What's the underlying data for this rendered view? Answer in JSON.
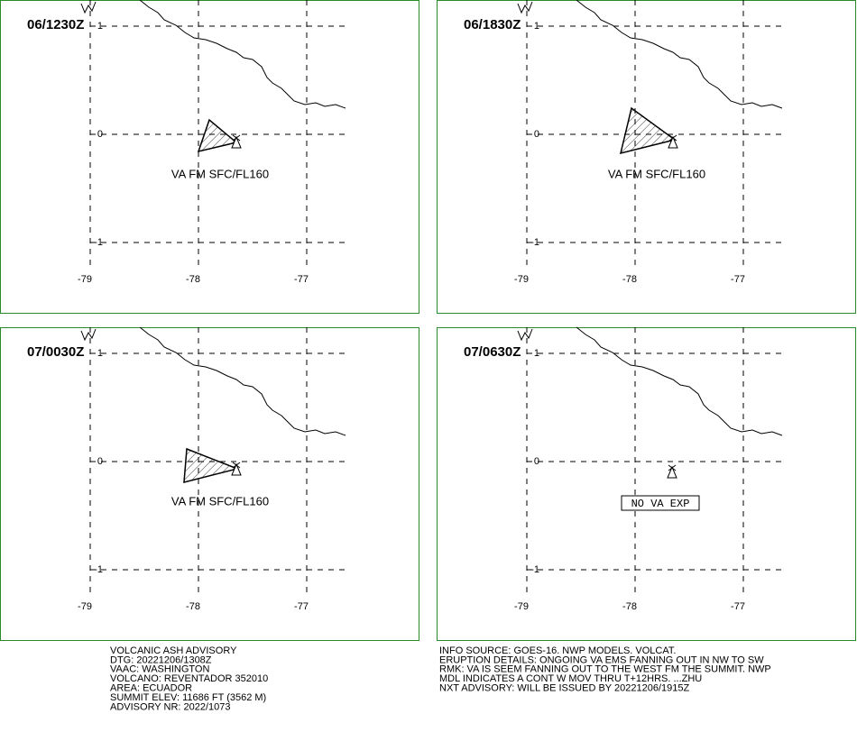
{
  "panels": [
    {
      "time": "06/1230Z",
      "ash_label": "VA FM SFC/FL160"
    },
    {
      "time": "06/1830Z",
      "ash_label": "VA FM SFC/FL160"
    },
    {
      "time": "07/0030Z",
      "ash_label": "VA FM SFC/FL160"
    },
    {
      "time": "07/0630Z",
      "no_ash_label": "NO VA EXP"
    }
  ],
  "lon_ticks": [
    -79,
    -78,
    -77
  ],
  "lat_ticks": [
    1,
    0,
    -1
  ],
  "advisory_left": [
    "VOLCANIC ASH ADVISORY",
    "DTG: 20221206/1308Z",
    "VAAC: WASHINGTON",
    "VOLCANO: REVENTADOR 352010",
    "AREA: ECUADOR",
    "SUMMIT ELEV: 11686 FT (3562 M)",
    "ADVISORY NR: 2022/1073"
  ],
  "advisory_right": [
    "INFO SOURCE: GOES-16. NWP MODELS. VOLCAT.",
    "ERUPTION DETAILS: ONGOING VA EMS FANNING OUT IN NW TO SW",
    "RMK: VA IS SEEM FANNING OUT TO THE WEST FM THE SUMMIT. NWP",
    "MDL INDICATES A CONT W MOV THRU T+12HRS. ...ZHU",
    "NXT ADVISORY: WILL BE ISSUED BY 20221206/1915Z"
  ]
}
